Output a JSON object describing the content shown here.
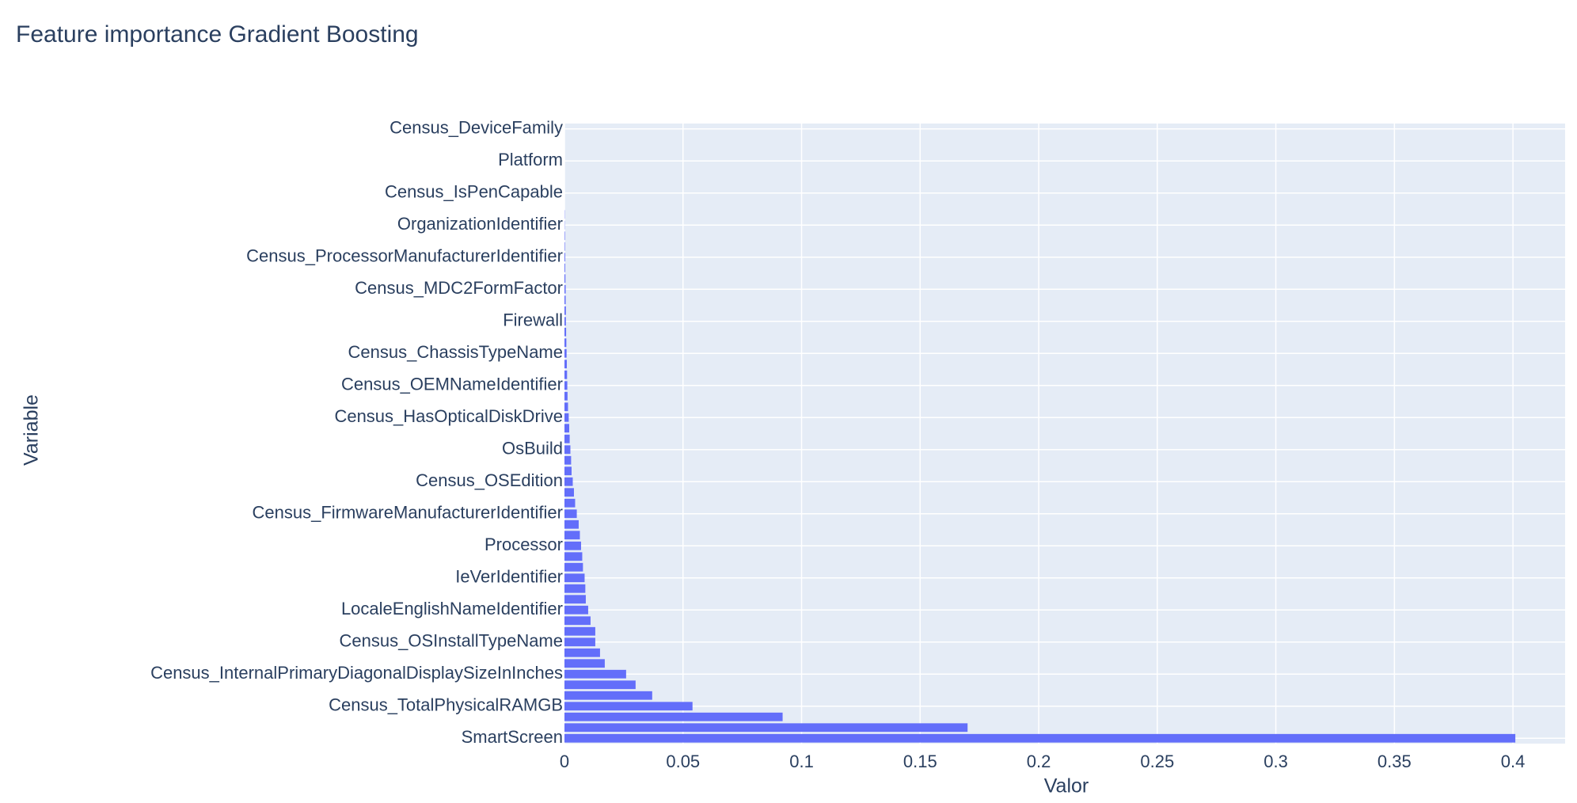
{
  "chart_data": {
    "type": "bar",
    "orientation": "horizontal",
    "title": "Feature importance Gradient Boosting",
    "x_label": "Valor",
    "y_label": "Variable",
    "color": "#636efa",
    "grid": true,
    "categories": [
      "SmartScreen",
      null,
      null,
      "Census_TotalPhysicalRAMGB",
      null,
      null,
      "Census_InternalPrimaryDiagonalDisplaySizeInInches",
      null,
      null,
      "Census_OSInstallTypeName",
      null,
      null,
      "LocaleEnglishNameIdentifier",
      null,
      null,
      "IeVerIdentifier",
      null,
      null,
      "Processor",
      null,
      null,
      "Census_FirmwareManufacturerIdentifier",
      null,
      null,
      "Census_OSEdition",
      null,
      null,
      "OsBuild",
      null,
      null,
      "Census_HasOpticalDiskDrive",
      null,
      null,
      "Census_OEMNameIdentifier",
      null,
      null,
      "Census_ChassisTypeName",
      null,
      null,
      "Firewall",
      null,
      null,
      "Census_MDC2FormFactor",
      null,
      null,
      "Census_ProcessorManufacturerIdentifier",
      null,
      null,
      "OrganizationIdentifier",
      null,
      null,
      "Census_IsPenCapable",
      null,
      null,
      "Platform",
      null,
      null,
      "Census_DeviceFamily"
    ],
    "values": [
      0.401,
      0.17,
      0.092,
      0.054,
      0.037,
      0.03,
      0.026,
      0.017,
      0.015,
      0.013,
      0.013,
      0.011,
      0.01,
      0.009,
      0.0088,
      0.0085,
      0.0078,
      0.0075,
      0.007,
      0.0065,
      0.006,
      0.0052,
      0.0045,
      0.004,
      0.0035,
      0.003,
      0.0028,
      0.0025,
      0.0022,
      0.002,
      0.0018,
      0.0015,
      0.0013,
      0.0012,
      0.0011,
      0.001,
      0.0009,
      0.0008,
      0.0007,
      0.0006,
      0.0006,
      0.0005,
      0.0005,
      0.0004,
      0.0003,
      0.0003,
      0.0002,
      0.0002,
      0.0001,
      0.0001,
      0,
      0,
      0,
      0,
      0,
      0,
      0,
      0
    ],
    "xlim": [
      0,
      0.422
    ],
    "xticks": [
      0,
      0.05,
      0.1,
      0.15,
      0.2,
      0.25,
      0.3,
      0.35,
      0.4
    ]
  }
}
